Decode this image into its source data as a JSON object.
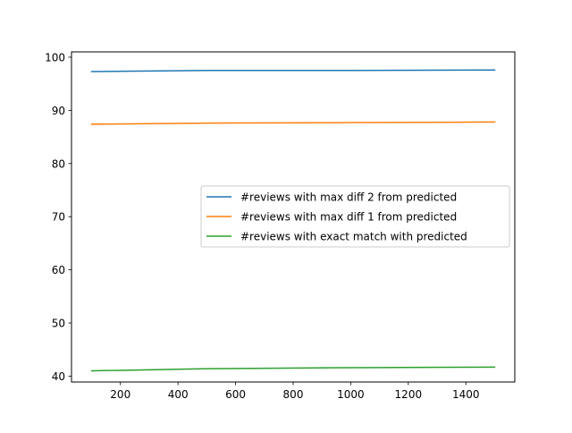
{
  "chart_data": {
    "type": "line",
    "title": "",
    "xlabel": "",
    "ylabel": "",
    "xlim": [
      30,
      1570
    ],
    "ylim": [
      38.9,
      101
    ],
    "xticks": [
      200,
      400,
      600,
      800,
      1000,
      1200,
      1400
    ],
    "yticks": [
      40,
      50,
      60,
      70,
      80,
      90,
      100
    ],
    "grid": false,
    "legend_position": "center-right",
    "x": [
      100,
      500,
      1000,
      1500
    ],
    "series": [
      {
        "name": "#reviews with max diff 2 from predicted",
        "color": "#1f77b4",
        "values": [
          97.3,
          97.5,
          97.5,
          97.6
        ]
      },
      {
        "name": "#reviews with max diff 1 from predicted",
        "color": "#ff7f0e",
        "values": [
          87.4,
          87.6,
          87.7,
          87.8
        ]
      },
      {
        "name": "#reviews with exact match with predicted",
        "color": "#2ca02c",
        "values": [
          41.0,
          41.4,
          41.6,
          41.7
        ]
      }
    ]
  }
}
